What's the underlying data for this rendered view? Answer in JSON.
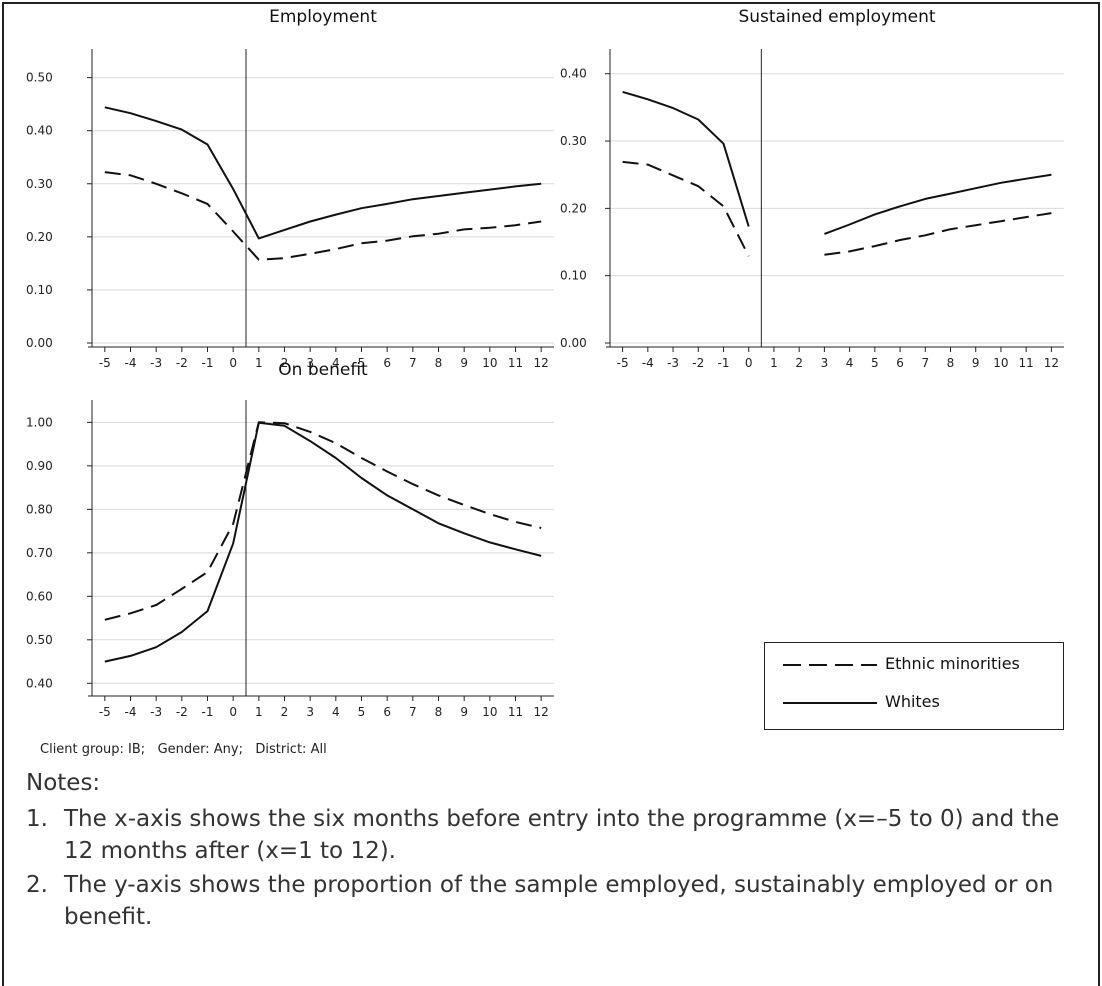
{
  "chart_data": [
    {
      "type": "line",
      "title": "Employment",
      "x": [
        -5,
        -4,
        -3,
        -2,
        -1,
        0,
        1,
        2,
        3,
        4,
        5,
        6,
        7,
        8,
        9,
        10,
        11,
        12
      ],
      "x_ticks": [
        "-5",
        "-4",
        "-3",
        "-2",
        "-1",
        "0",
        "1",
        "2",
        "3",
        "4",
        "5",
        "6",
        "7",
        "8",
        "9",
        "10",
        "11",
        "12"
      ],
      "y_ticks": [
        "0.00",
        "0.10",
        "0.20",
        "0.30",
        "0.40",
        "0.50"
      ],
      "ylim": [
        0,
        0.52
      ],
      "vline_between": [
        0,
        1
      ],
      "grid": true,
      "series": [
        {
          "name": "Ethnic minorities",
          "style": "dashed",
          "values": [
            0.322,
            0.316,
            0.3,
            0.282,
            0.262,
            0.21,
            0.157,
            0.16,
            0.168,
            0.177,
            0.188,
            0.193,
            0.201,
            0.206,
            0.214,
            0.217,
            0.222,
            0.229
          ]
        },
        {
          "name": "Whites",
          "style": "solid",
          "values": [
            0.444,
            0.433,
            0.418,
            0.402,
            0.374,
            0.29,
            0.197,
            0.213,
            0.229,
            0.242,
            0.254,
            0.262,
            0.271,
            0.277,
            0.283,
            0.289,
            0.295,
            0.3
          ]
        }
      ]
    },
    {
      "type": "line",
      "title": "Sustained employment",
      "x": [
        -5,
        -4,
        -3,
        -2,
        -1,
        0,
        1,
        2,
        3,
        4,
        5,
        6,
        7,
        8,
        9,
        10,
        11,
        12
      ],
      "x_ticks": [
        "-5",
        "-4",
        "-3",
        "-2",
        "-1",
        "0",
        "1",
        "2",
        "3",
        "4",
        "5",
        "6",
        "7",
        "8",
        "9",
        "10",
        "11",
        "12"
      ],
      "y_ticks": [
        "0.00",
        "0.10",
        "0.20",
        "0.30",
        "0.40"
      ],
      "ylim": [
        0,
        0.41
      ],
      "vline_between": [
        0,
        1
      ],
      "grid": true,
      "series": [
        {
          "name": "Ethnic minorities",
          "style": "dashed",
          "values": [
            0.269,
            0.265,
            0.249,
            0.233,
            0.203,
            0.129,
            null,
            null,
            0.131,
            0.136,
            0.144,
            0.153,
            0.16,
            0.169,
            0.175,
            0.181,
            0.187,
            0.193
          ]
        },
        {
          "name": "Whites",
          "style": "solid",
          "values": [
            0.373,
            0.362,
            0.349,
            0.332,
            0.296,
            0.173,
            null,
            null,
            0.162,
            0.176,
            0.191,
            0.203,
            0.214,
            0.222,
            0.23,
            0.238,
            0.244,
            0.25
          ]
        }
      ]
    },
    {
      "type": "line",
      "title": "On benefit",
      "x": [
        -5,
        -4,
        -3,
        -2,
        -1,
        0,
        1,
        2,
        3,
        4,
        5,
        6,
        7,
        8,
        9,
        10,
        11,
        12
      ],
      "x_ticks": [
        "-5",
        "-4",
        "-3",
        "-2",
        "-1",
        "0",
        "1",
        "2",
        "3",
        "4",
        "5",
        "6",
        "7",
        "8",
        "9",
        "10",
        "11",
        "12"
      ],
      "y_ticks": [
        "0.40",
        "0.50",
        "0.60",
        "0.70",
        "0.80",
        "0.90",
        "1.00"
      ],
      "ylim": [
        0.38,
        1.01
      ],
      "vline_between": [
        0,
        1
      ],
      "grid": true,
      "series": [
        {
          "name": "Ethnic minorities",
          "style": "dashed",
          "values": [
            0.546,
            0.561,
            0.58,
            0.617,
            0.656,
            0.767,
            1.0,
            0.998,
            0.978,
            0.952,
            0.918,
            0.887,
            0.858,
            0.832,
            0.81,
            0.789,
            0.771,
            0.757
          ]
        },
        {
          "name": "Whites",
          "style": "solid",
          "values": [
            0.45,
            0.463,
            0.483,
            0.518,
            0.566,
            0.722,
            0.999,
            0.992,
            0.957,
            0.918,
            0.872,
            0.832,
            0.8,
            0.768,
            0.745,
            0.724,
            0.708,
            0.693
          ]
        }
      ]
    }
  ],
  "legend": {
    "items": [
      {
        "label": "Ethnic minorities",
        "style": "dashed"
      },
      {
        "label": "Whites",
        "style": "solid"
      }
    ]
  },
  "caption": "Client group: IB;   Gender: Any;   District: All",
  "notes": {
    "title": "Notes:",
    "items": [
      {
        "num": "1.",
        "text": "The x-axis shows the six months before entry into the programme (x=–5 to 0) and the 12 months after (x=1 to 12)."
      },
      {
        "num": "2.",
        "text": "The y-axis shows the proportion of the sample employed, sustainably employed or on benefit."
      }
    ]
  },
  "colors": {
    "line": "#111111",
    "grid": "#d9d9d9"
  }
}
